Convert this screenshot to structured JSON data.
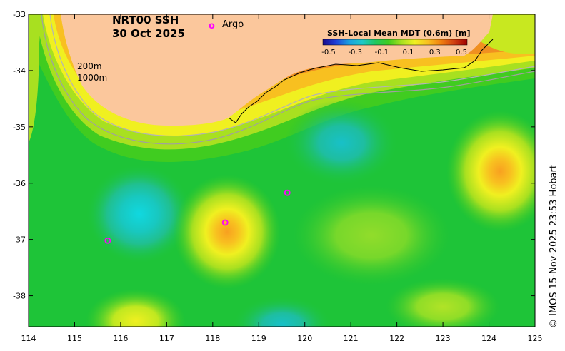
{
  "title": {
    "product": "NRT00 SSH",
    "date": "30 Oct 2025"
  },
  "legend": {
    "argo_marker": "o",
    "argo_label": "Argo",
    "colorbar_title": "SSH-Local Mean MDT (0.6m) [m]",
    "colorbar_ticks": [
      "-0.5",
      "-0.3",
      "-0.1",
      "0.1",
      "0.3",
      "0.5"
    ],
    "colorbar_values": [
      -0.5,
      -0.3,
      -0.1,
      0.1,
      0.3,
      0.5
    ],
    "colorbar_stops": [
      "#1a0a8c",
      "#2040d8",
      "#1aa0e0",
      "#20c8c8",
      "#20c860",
      "#40cc20",
      "#a8e020",
      "#f0f020",
      "#f8c020",
      "#f08010",
      "#d04010",
      "#a00000"
    ]
  },
  "isobaths": {
    "label_200": "200m",
    "label_1000": "1000m"
  },
  "axes": {
    "x_ticks": [
      "114",
      "115",
      "116",
      "117",
      "118",
      "119",
      "120",
      "121",
      "122",
      "123",
      "124",
      "125"
    ],
    "x_values": [
      114,
      115,
      116,
      117,
      118,
      119,
      120,
      121,
      122,
      123,
      124,
      125
    ],
    "y_ticks": [
      "-33",
      "-34",
      "-35",
      "-36",
      "-37",
      "-38"
    ],
    "y_values": [
      -33,
      -34,
      -35,
      -36,
      -37,
      -38
    ],
    "lon_range": [
      114,
      125
    ],
    "lat_range": [
      -38.55,
      -33
    ]
  },
  "argo_floats": [
    {
      "lon": 115.72,
      "lat": -37.02
    },
    {
      "lon": 118.27,
      "lat": -36.7
    },
    {
      "lon": 119.62,
      "lat": -36.17
    }
  ],
  "eddies": [
    {
      "type": "cyclonic",
      "lon": 116.4,
      "lat": -36.55,
      "anomaly": -0.15
    },
    {
      "type": "cyclonic",
      "lon": 120.9,
      "lat": -35.2,
      "anomaly": -0.1
    },
    {
      "type": "anticyclonic",
      "lon": 118.3,
      "lat": -36.85,
      "anomaly": 0.3
    },
    {
      "type": "anticyclonic",
      "lon": 124.2,
      "lat": -35.75,
      "anomaly": 0.3
    },
    {
      "type": "cyclonic",
      "lon": 119.6,
      "lat": -38.4,
      "anomaly": -0.1
    },
    {
      "type": "anticyclonic",
      "lon": 116.6,
      "lat": -38.35,
      "anomaly": 0.2
    }
  ],
  "colors": {
    "land": "#fbc79c",
    "background_field": "#1ec438",
    "border": "#000000"
  },
  "credit": "© IMOS 15-Nov-2025 23:53 Hobart"
}
